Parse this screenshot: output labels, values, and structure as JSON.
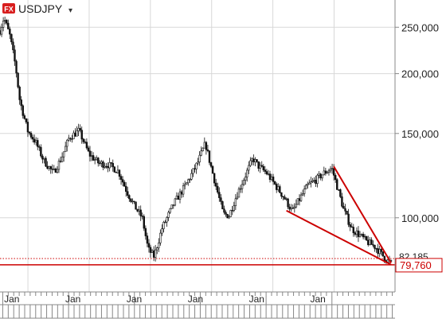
{
  "header": {
    "fx_badge": "FX",
    "symbol": "USDJPY",
    "dropdown_glyph": "▾"
  },
  "chart_data": {
    "type": "candlestick",
    "symbol": "USDJPY",
    "y_scale": "log",
    "ylim": [
      70,
      285
    ],
    "y_ticks": [
      {
        "value": 250,
        "label": "250,000"
      },
      {
        "value": 200,
        "label": "200,000"
      },
      {
        "value": 150,
        "label": "150,000"
      },
      {
        "value": 100,
        "label": "100,000"
      }
    ],
    "x_tick_labels": [
      "Jan",
      "Jan",
      "Jan",
      "Jan",
      "Jan",
      "Jan"
    ],
    "x_tick_label_positions": [
      0.107,
      0.262,
      0.417,
      0.572,
      0.727,
      0.882
    ],
    "grid": true,
    "price_labels": {
      "current_label": "79,760",
      "current_value": 79.76,
      "partial_label": "82,185",
      "partial_value": 82.185
    },
    "horizontal_lines": [
      {
        "value": 79.76,
        "style": "solid",
        "color": "#cc0000"
      },
      {
        "value": 82.185,
        "style": "dotted",
        "color": "#cc0000"
      }
    ],
    "trend_lines": [
      {
        "from": [
          0.725,
          103.5
        ],
        "to": [
          0.99,
          79.8
        ],
        "color": "#cc0000"
      },
      {
        "from": [
          0.845,
          128.0
        ],
        "to": [
          0.99,
          80.5
        ],
        "color": "#cc0000"
      }
    ],
    "price_path": [
      [
        0.0,
        246
      ],
      [
        0.01,
        262
      ],
      [
        0.025,
        240
      ],
      [
        0.04,
        206
      ],
      [
        0.05,
        176
      ],
      [
        0.07,
        152
      ],
      [
        0.09,
        144
      ],
      [
        0.11,
        132
      ],
      [
        0.135,
        124
      ],
      [
        0.155,
        133
      ],
      [
        0.175,
        147
      ],
      [
        0.2,
        152
      ],
      [
        0.225,
        136
      ],
      [
        0.25,
        130
      ],
      [
        0.275,
        129
      ],
      [
        0.3,
        125
      ],
      [
        0.32,
        114
      ],
      [
        0.34,
        106
      ],
      [
        0.36,
        100
      ],
      [
        0.375,
        86
      ],
      [
        0.39,
        83
      ],
      [
        0.41,
        95
      ],
      [
        0.44,
        107
      ],
      [
        0.47,
        117
      ],
      [
        0.5,
        130
      ],
      [
        0.52,
        143
      ],
      [
        0.53,
        132
      ],
      [
        0.545,
        118
      ],
      [
        0.565,
        102
      ],
      [
        0.58,
        101
      ],
      [
        0.6,
        112
      ],
      [
        0.62,
        122
      ],
      [
        0.64,
        133
      ],
      [
        0.655,
        128
      ],
      [
        0.675,
        124
      ],
      [
        0.7,
        116
      ],
      [
        0.72,
        110
      ],
      [
        0.74,
        103
      ],
      [
        0.76,
        110
      ],
      [
        0.78,
        117
      ],
      [
        0.8,
        120
      ],
      [
        0.82,
        124
      ],
      [
        0.84,
        127
      ],
      [
        0.855,
        115
      ],
      [
        0.87,
        104
      ],
      [
        0.89,
        95
      ],
      [
        0.91,
        92
      ],
      [
        0.93,
        89
      ],
      [
        0.95,
        87
      ],
      [
        0.965,
        84
      ],
      [
        0.98,
        81.5
      ],
      [
        0.99,
        80.3
      ]
    ]
  },
  "colors": {
    "background": "#ffffff",
    "grid": "#d8d8d8",
    "axis": "#888888",
    "candle": "#111111",
    "accent_red": "#cc0000",
    "label_text": "#222222",
    "badge": "#d81e1e"
  }
}
